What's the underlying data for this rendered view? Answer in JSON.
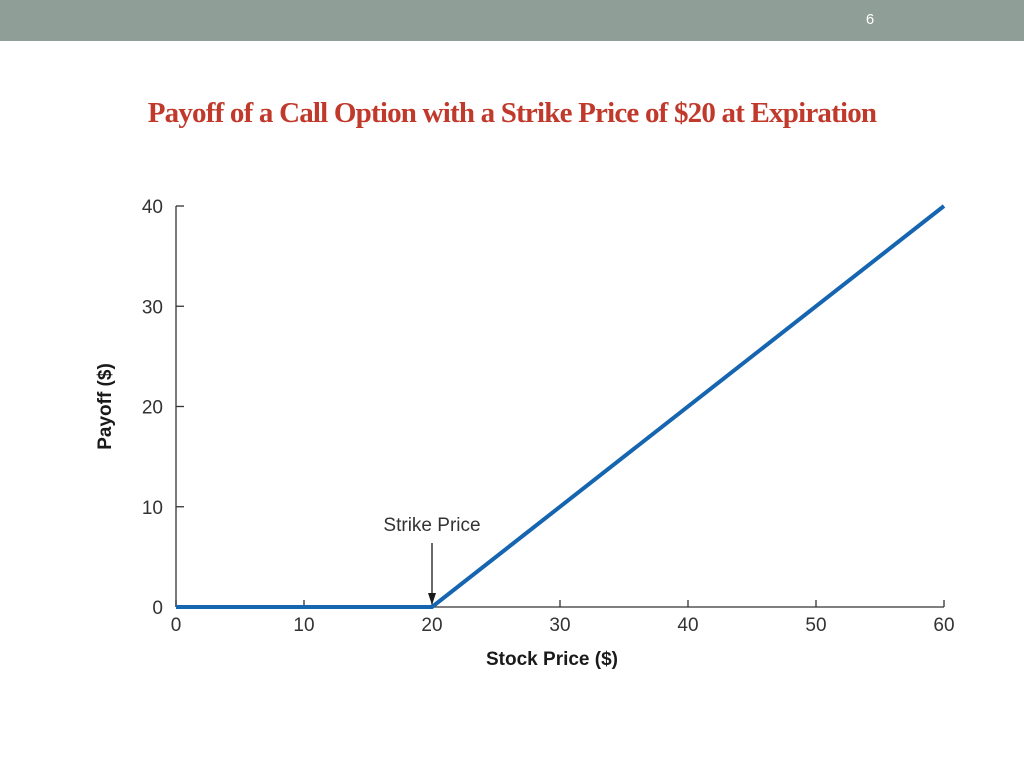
{
  "slide": {
    "number": "6",
    "title": "Payoff of a Call Option with a Strike Price of $20 at Expiration"
  },
  "colors": {
    "top_bar": "#8f9e97",
    "title": "#c0392b",
    "line": "#1565b0",
    "axis": "#333333"
  },
  "chart_data": {
    "type": "line",
    "title": "",
    "xlabel": "Stock Price ($)",
    "ylabel": "Payoff ($)",
    "xlim": [
      0,
      60
    ],
    "ylim": [
      0,
      40
    ],
    "xticks": [
      0,
      10,
      20,
      30,
      40,
      50,
      60
    ],
    "yticks": [
      0,
      10,
      20,
      30,
      40
    ],
    "grid": false,
    "series": [
      {
        "x": [
          0,
          20,
          60
        ],
        "y": [
          0,
          0,
          40
        ]
      }
    ],
    "annotations": [
      {
        "text": "Strike Price",
        "x": 20,
        "y": 0,
        "arrow": true
      }
    ]
  }
}
